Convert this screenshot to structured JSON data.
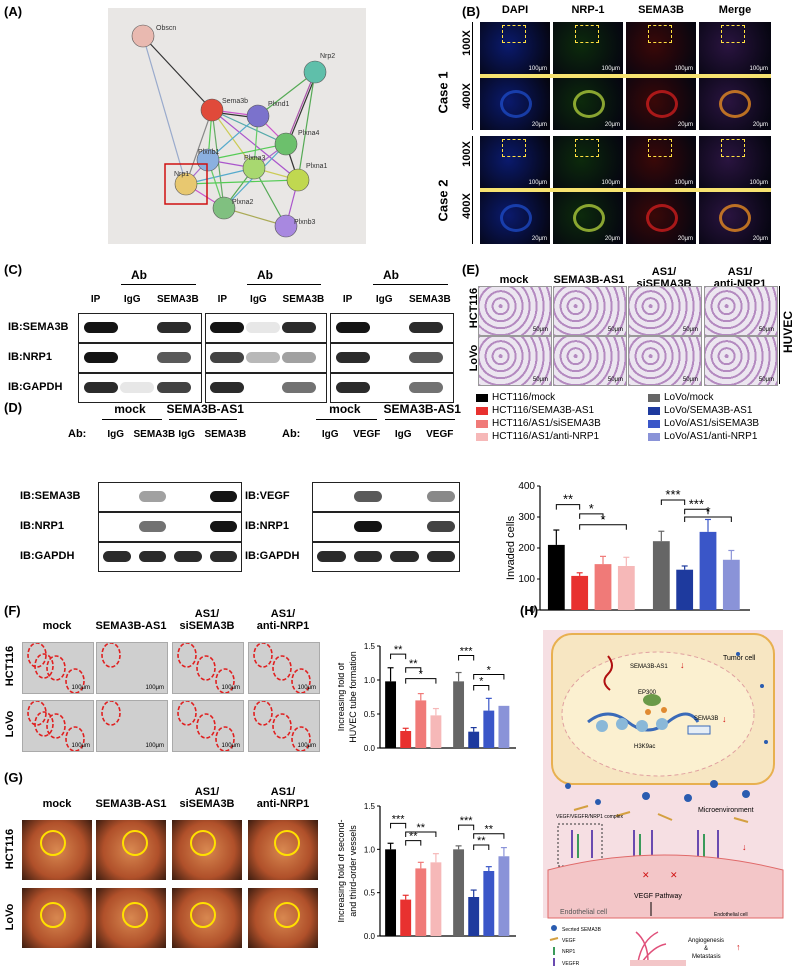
{
  "panels": {
    "A": "(A)",
    "B": "(B)",
    "C": "(C)",
    "D": "(D)",
    "E": "(E)",
    "F": "(F)",
    "G": "(G)",
    "H": "(H)"
  },
  "panelA": {
    "nodes": [
      "Obscn",
      "Nrp2",
      "Sema3b",
      "Plxnd1",
      "Plxna4",
      "Plxnb1",
      "Plxna3",
      "Plxna1",
      "Nrp1",
      "Plxna2",
      "Plxnb3"
    ]
  },
  "panelB": {
    "columns": [
      "DAPI",
      "NRP-1",
      "SEMA3B",
      "Merge"
    ],
    "cases": [
      "Case 1",
      "Case 2"
    ],
    "mags": [
      "100X",
      "400X"
    ],
    "scale_100": "100μm",
    "scale_20": "20μm",
    "colors": {
      "dapi": "#0a1a6e",
      "nrp": "#0c2a0c",
      "sema": "#3a0808",
      "merge": "#2a1440"
    }
  },
  "panelC": {
    "ab": "Ab",
    "lanes": [
      "IP",
      "IgG",
      "SEMA3B"
    ],
    "rows": [
      "IB:SEMA3B",
      "IB:NRP1",
      "IB:GAPDH"
    ]
  },
  "panelD": {
    "groups": [
      "mock",
      "SEMA3B-AS1"
    ],
    "ab_label": "Ab:",
    "left_lanes": [
      "IgG",
      "SEMA3B",
      "IgG",
      "SEMA3B"
    ],
    "right_lanes": [
      "IgG",
      "VEGF",
      "IgG",
      "VEGF"
    ],
    "left_rows": [
      "IB:SEMA3B",
      "IB:NRP1",
      "IB:GAPDH"
    ],
    "right_rows": [
      "IB:VEGF",
      "IB:NRP1",
      "IB:GAPDH"
    ]
  },
  "panelE": {
    "columns": [
      "mock",
      "SEMA3B-AS1",
      "AS1/\nsiSEMA3B",
      "AS1/\nanti-NRP1"
    ],
    "rows": [
      "HCT116",
      "LoVo"
    ],
    "side": "HUVEC",
    "scale": "50μm",
    "legend": [
      {
        "name": "HCT116/mock",
        "color": "#000000"
      },
      {
        "name": "HCT116/SEMA3B-AS1",
        "color": "#e8312f"
      },
      {
        "name": "HCT116/AS1/siSEMA3B",
        "color": "#f07a78"
      },
      {
        "name": "HCT116/AS1/anti-NRP1",
        "color": "#f6b8b8"
      },
      {
        "name": "LoVo/mock",
        "color": "#666666"
      },
      {
        "name": "LoVo/SEMA3B-AS1",
        "color": "#1e3a9e"
      },
      {
        "name": "LoVo/AS1/siSEMA3B",
        "color": "#3a56c8"
      },
      {
        "name": "LoVo/AS1/anti-NRP1",
        "color": "#8a93d8"
      }
    ]
  },
  "panelF": {
    "columns": [
      "mock",
      "SEMA3B-AS1",
      "AS1/\nsiSEMA3B",
      "AS1/\nanti-NRP1"
    ],
    "rows": [
      "HCT116",
      "LoVo"
    ],
    "scale": "100μm"
  },
  "panelG": {
    "columns": [
      "mock",
      "SEMA3B-AS1",
      "AS1/\nsiSEMA3B",
      "AS1/\nanti-NRP1"
    ],
    "rows": [
      "HCT116",
      "LoVo"
    ]
  },
  "panelH": {
    "tumor_cell": "Tumor cell",
    "microenvironment": "Microenvironment",
    "endothelial_cell": "Endothelial cell",
    "endothelial_cell2": "Endothelial cell",
    "complex": "VEGF/VEGFR/NRP1\ncomplex",
    "vegf_pathway": "VEGF Pathway",
    "ep300": "EP300",
    "sema3b_as1": "SEMA3B-AS1",
    "sema3b": "SEMA3B",
    "h3k9ac": "H3K9ac",
    "outcome": "Angiogenesis\n&\nMetastasis",
    "key": [
      "Secrted SEMA3B",
      "VEGF",
      "NRP1",
      "VEGFR"
    ]
  },
  "chart_data": [
    {
      "type": "bar",
      "ylabel": "Invaded cells",
      "ylim": [
        0,
        400
      ],
      "yticks": [
        0,
        100,
        200,
        300,
        400
      ],
      "series": [
        {
          "name": "HCT116/mock",
          "values": [
            210
          ]
        },
        {
          "name": "HCT116/SEMA3B-AS1",
          "values": [
            110
          ]
        },
        {
          "name": "HCT116/AS1/siSEMA3B",
          "values": [
            148
          ]
        },
        {
          "name": "HCT116/AS1/anti-NRP1",
          "values": [
            142
          ]
        },
        {
          "name": "LoVo/mock",
          "values": [
            222
          ]
        },
        {
          "name": "LoVo/SEMA3B-AS1",
          "values": [
            130
          ]
        },
        {
          "name": "LoVo/AS1/siSEMA3B",
          "values": [
            252
          ]
        },
        {
          "name": "LoVo/AS1/anti-NRP1",
          "values": [
            162
          ]
        }
      ],
      "errors": [
        48,
        10,
        25,
        28,
        32,
        12,
        40,
        30
      ],
      "annotations": [
        "**",
        "*",
        "*",
        "***",
        "***",
        "*"
      ]
    },
    {
      "type": "bar",
      "ylabel": "Increasing fold of\nHUVEC tube formation",
      "ylim": [
        0,
        1.5
      ],
      "yticks": [
        0.0,
        0.5,
        1.0,
        1.5
      ],
      "series": [
        {
          "name": "HCT116/mock",
          "values": [
            0.98
          ]
        },
        {
          "name": "HCT116/SEMA3B-AS1",
          "values": [
            0.25
          ]
        },
        {
          "name": "HCT116/AS1/siSEMA3B",
          "values": [
            0.7
          ]
        },
        {
          "name": "HCT116/AS1/anti-NRP1",
          "values": [
            0.48
          ]
        },
        {
          "name": "LoVo/mock",
          "values": [
            0.98
          ]
        },
        {
          "name": "LoVo/SEMA3B-AS1",
          "values": [
            0.24
          ]
        },
        {
          "name": "LoVo/AS1/siSEMA3B",
          "values": [
            0.55
          ]
        },
        {
          "name": "LoVo/AS1/anti-NRP1",
          "values": [
            0.62
          ]
        }
      ],
      "errors": [
        0.2,
        0.04,
        0.1,
        0.1,
        0.13,
        0.06,
        0.18,
        0.0
      ],
      "annotations": [
        "**",
        "**",
        "*",
        "***",
        "*",
        "*"
      ]
    },
    {
      "type": "bar",
      "ylabel": "Increasing fold of second-\nand third-order vessels",
      "ylim": [
        0,
        1.5
      ],
      "yticks": [
        0.0,
        0.5,
        1.0,
        1.5
      ],
      "series": [
        {
          "name": "HCT116/mock",
          "values": [
            1.0
          ]
        },
        {
          "name": "HCT116/SEMA3B-AS1",
          "values": [
            0.42
          ]
        },
        {
          "name": "HCT116/AS1/siSEMA3B",
          "values": [
            0.78
          ]
        },
        {
          "name": "HCT116/AS1/anti-NRP1",
          "values": [
            0.85
          ]
        },
        {
          "name": "LoVo/mock",
          "values": [
            1.0
          ]
        },
        {
          "name": "LoVo/SEMA3B-AS1",
          "values": [
            0.45
          ]
        },
        {
          "name": "LoVo/AS1/siSEMA3B",
          "values": [
            0.75
          ]
        },
        {
          "name": "LoVo/AS1/anti-NRP1",
          "values": [
            0.92
          ]
        }
      ],
      "errors": [
        0.07,
        0.05,
        0.07,
        0.1,
        0.04,
        0.08,
        0.05,
        0.1
      ],
      "annotations": [
        "***",
        "**",
        "**",
        "***",
        "**",
        "**"
      ]
    }
  ]
}
